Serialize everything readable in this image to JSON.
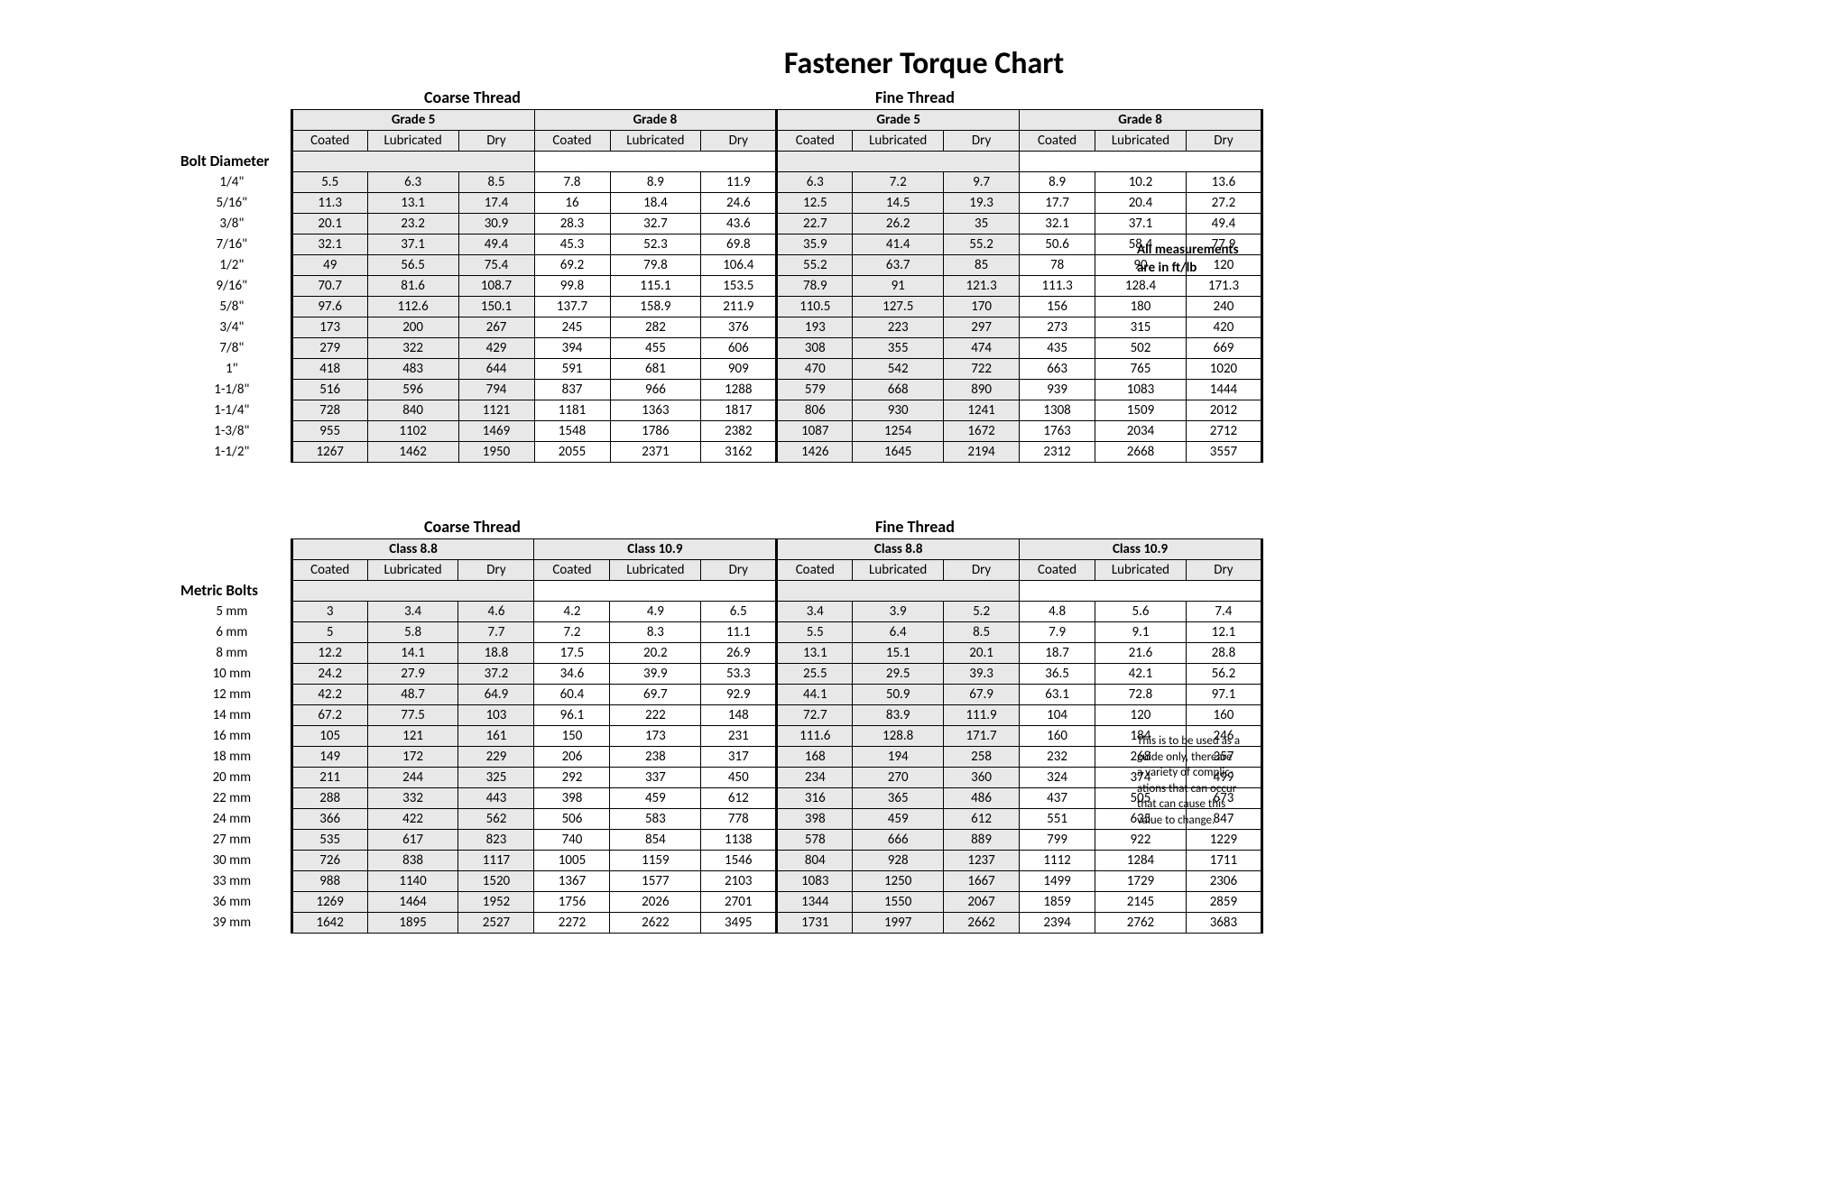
{
  "title": "Fastener Torque Chart",
  "background_color": "#ffffff",
  "border_color": "#000000",
  "shaded_cell_color": "#e8e8e8",
  "text_color": "#000000",
  "font_family": "Calibri",
  "title_fontsize_pt": 26,
  "body_fontsize_pt": 11,
  "thread_labels": {
    "coarse": "Coarse Thread",
    "fine": "Fine Thread"
  },
  "sub_headers": [
    "Coated",
    "Lubricated",
    "Dry"
  ],
  "side_note_units": {
    "lines": [
      "All measurements",
      "are in ft/lb"
    ]
  },
  "side_note_disclaimer": {
    "lines": [
      "This is to be used as a",
      "guide only, thereare",
      "a variety of complic-",
      "ations that can occur",
      "that can cause this",
      "value to change."
    ]
  },
  "imperial": {
    "row_header_label": "Bolt Diameter",
    "grade_headers": [
      "Grade 5",
      "Grade 8",
      "Grade 5",
      "Grade 8"
    ],
    "diameters": [
      "1/4\"",
      "5/16\"",
      "3/8\"",
      "7/16\"",
      "1/2\"",
      "9/16\"",
      "5/8\"",
      "3/4\"",
      "7/8\"",
      "1\"",
      "1-1/8\"",
      "1-1/4\"",
      "1-3/8\"",
      "1-1/2\""
    ],
    "rows": [
      [
        5.5,
        6.3,
        8.5,
        7.8,
        8.9,
        11.9,
        6.3,
        7.2,
        9.7,
        8.9,
        10.2,
        13.6
      ],
      [
        11.3,
        13.1,
        17.4,
        16,
        18.4,
        24.6,
        12.5,
        14.5,
        19.3,
        17.7,
        20.4,
        27.2
      ],
      [
        20.1,
        23.2,
        30.9,
        28.3,
        32.7,
        43.6,
        22.7,
        26.2,
        35,
        32.1,
        37.1,
        49.4
      ],
      [
        32.1,
        37.1,
        49.4,
        45.3,
        52.3,
        69.8,
        35.9,
        41.4,
        55.2,
        50.6,
        58.4,
        77.9
      ],
      [
        49,
        56.5,
        75.4,
        69.2,
        79.8,
        106.4,
        55.2,
        63.7,
        85,
        78,
        90,
        120
      ],
      [
        70.7,
        81.6,
        108.7,
        99.8,
        115.1,
        153.5,
        78.9,
        91,
        121.3,
        111.3,
        128.4,
        171.3
      ],
      [
        97.6,
        112.6,
        150.1,
        137.7,
        158.9,
        211.9,
        110.5,
        127.5,
        170,
        156,
        180,
        240
      ],
      [
        173,
        200,
        267,
        245,
        282,
        376,
        193,
        223,
        297,
        273,
        315,
        420
      ],
      [
        279,
        322,
        429,
        394,
        455,
        606,
        308,
        355,
        474,
        435,
        502,
        669
      ],
      [
        418,
        483,
        644,
        591,
        681,
        909,
        470,
        542,
        722,
        663,
        765,
        1020
      ],
      [
        516,
        596,
        794,
        837,
        966,
        1288,
        579,
        668,
        890,
        939,
        1083,
        1444
      ],
      [
        728,
        840,
        1121,
        1181,
        1363,
        1817,
        806,
        930,
        1241,
        1308,
        1509,
        2012
      ],
      [
        955,
        1102,
        1469,
        1548,
        1786,
        2382,
        1087,
        1254,
        1672,
        1763,
        2034,
        2712
      ],
      [
        1267,
        1462,
        1950,
        2055,
        2371,
        3162,
        1426,
        1645,
        2194,
        2312,
        2668,
        3557
      ]
    ]
  },
  "metric": {
    "row_header_label": "Metric Bolts",
    "grade_headers": [
      "Class 8.8",
      "Class 10.9",
      "Class 8.8",
      "Class 10.9"
    ],
    "diameters": [
      "5 mm",
      "6 mm",
      "8 mm",
      "10 mm",
      "12 mm",
      "14 mm",
      "16 mm",
      "18 mm",
      "20 mm",
      "22 mm",
      "24 mm",
      "27 mm",
      "30 mm",
      "33 mm",
      "36 mm",
      "39 mm"
    ],
    "rows": [
      [
        3,
        3.4,
        4.6,
        4.2,
        4.9,
        6.5,
        3.4,
        3.9,
        5.2,
        4.8,
        5.6,
        7.4
      ],
      [
        5,
        5.8,
        7.7,
        7.2,
        8.3,
        11.1,
        5.5,
        6.4,
        8.5,
        7.9,
        9.1,
        12.1
      ],
      [
        12.2,
        14.1,
        18.8,
        17.5,
        20.2,
        26.9,
        13.1,
        15.1,
        20.1,
        18.7,
        21.6,
        28.8
      ],
      [
        24.2,
        27.9,
        37.2,
        34.6,
        39.9,
        53.3,
        25.5,
        29.5,
        39.3,
        36.5,
        42.1,
        56.2
      ],
      [
        42.2,
        48.7,
        64.9,
        60.4,
        69.7,
        92.9,
        44.1,
        50.9,
        67.9,
        63.1,
        72.8,
        97.1
      ],
      [
        67.2,
        77.5,
        103,
        96.1,
        222,
        148,
        72.7,
        83.9,
        111.9,
        104,
        120,
        160
      ],
      [
        105,
        121,
        161,
        150,
        173,
        231,
        111.6,
        128.8,
        171.7,
        160,
        184,
        246
      ],
      [
        149,
        172,
        229,
        206,
        238,
        317,
        168,
        194,
        258,
        232,
        268,
        357
      ],
      [
        211,
        244,
        325,
        292,
        337,
        450,
        234,
        270,
        360,
        324,
        374,
        499
      ],
      [
        288,
        332,
        443,
        398,
        459,
        612,
        316,
        365,
        486,
        437,
        505,
        673
      ],
      [
        366,
        422,
        562,
        506,
        583,
        778,
        398,
        459,
        612,
        551,
        635,
        847
      ],
      [
        535,
        617,
        823,
        740,
        854,
        1138,
        578,
        666,
        889,
        799,
        922,
        1229
      ],
      [
        726,
        838,
        1117,
        1005,
        1159,
        1546,
        804,
        928,
        1237,
        1112,
        1284,
        1711
      ],
      [
        988,
        1140,
        1520,
        1367,
        1577,
        2103,
        1083,
        1250,
        1667,
        1499,
        1729,
        2306
      ],
      [
        1269,
        1464,
        1952,
        1756,
        2026,
        2701,
        1344,
        1550,
        2067,
        1859,
        2145,
        2859
      ],
      [
        1642,
        1895,
        2527,
        2272,
        2622,
        3495,
        1731,
        1997,
        2662,
        2394,
        2762,
        3683
      ]
    ]
  }
}
